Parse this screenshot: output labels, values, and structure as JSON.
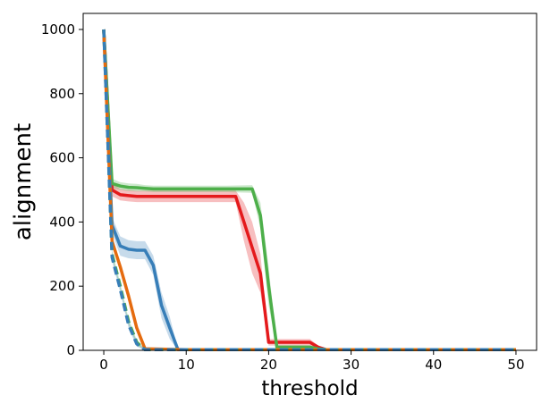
{
  "chart_data": {
    "type": "line",
    "title": "",
    "xlabel": "threshold",
    "ylabel": "alignment",
    "xlim": [
      -2.5,
      52.5
    ],
    "ylim": [
      0,
      1050
    ],
    "xticks": [
      0,
      10,
      20,
      30,
      40,
      50
    ],
    "yticks": [
      0,
      200,
      400,
      600,
      800,
      1000
    ],
    "grid": false,
    "legend": "none",
    "series": [
      {
        "color": "#e41a1c",
        "style": "solid",
        "x": [
          0,
          1,
          2,
          3,
          4,
          5,
          6,
          7,
          8,
          9,
          10,
          12,
          14,
          16,
          17,
          18,
          19,
          20,
          21,
          22,
          23,
          24,
          25,
          26,
          27,
          30,
          40,
          50
        ],
        "y": [
          1000,
          500,
          485,
          482,
          480,
          480,
          480,
          480,
          480,
          480,
          480,
          480,
          480,
          480,
          400,
          320,
          240,
          25,
          25,
          25,
          25,
          25,
          25,
          10,
          2,
          2,
          2,
          2
        ],
        "band": [
          0,
          20,
          18,
          18,
          18,
          18,
          18,
          18,
          18,
          18,
          18,
          18,
          18,
          18,
          60,
          80,
          60,
          10,
          10,
          10,
          10,
          10,
          10,
          5,
          2,
          2,
          2,
          2
        ]
      },
      {
        "color": "#4daf4a",
        "style": "solid",
        "x": [
          0,
          1,
          2,
          3,
          4,
          5,
          6,
          10,
          15,
          18,
          19,
          20,
          21,
          22,
          25,
          26,
          27,
          30,
          40,
          50
        ],
        "y": [
          1000,
          520,
          512,
          508,
          507,
          505,
          503,
          503,
          503,
          503,
          420,
          200,
          10,
          10,
          10,
          5,
          2,
          2,
          2,
          2
        ],
        "band": [
          0,
          15,
          12,
          12,
          12,
          10,
          10,
          10,
          10,
          12,
          40,
          60,
          5,
          5,
          5,
          3,
          2,
          2,
          2,
          2
        ]
      },
      {
        "color": "#377eb8",
        "style": "solid",
        "x": [
          0,
          1,
          2,
          3,
          4,
          5,
          6,
          7,
          8,
          9,
          10,
          20,
          30,
          40,
          50
        ],
        "y": [
          1000,
          390,
          325,
          315,
          312,
          312,
          265,
          140,
          70,
          2,
          2,
          2,
          2,
          2,
          2
        ],
        "band": [
          0,
          25,
          30,
          28,
          28,
          28,
          30,
          40,
          35,
          2,
          2,
          2,
          2,
          2,
          2
        ]
      },
      {
        "color": "#e56b0f",
        "style": "solid",
        "x": [
          0,
          1,
          2,
          3,
          4,
          5,
          10,
          20,
          30,
          40,
          50
        ],
        "y": [
          1000,
          340,
          260,
          170,
          70,
          5,
          2,
          2,
          2,
          2,
          2
        ],
        "band": [
          0,
          15,
          12,
          12,
          10,
          3,
          2,
          2,
          2,
          2,
          2
        ]
      },
      {
        "color": "#4daf4a",
        "style": "dashed",
        "x": [
          0,
          1,
          2,
          3,
          4,
          5,
          10,
          20,
          30,
          40,
          50
        ],
        "y": [
          1000,
          300,
          200,
          90,
          25,
          2,
          2,
          2,
          2,
          2,
          2
        ],
        "band": [
          0,
          12,
          10,
          10,
          8,
          2,
          2,
          2,
          2,
          2,
          2
        ]
      },
      {
        "color": "#377eb8",
        "style": "dashed",
        "x": [
          0,
          1,
          2,
          3,
          4,
          5,
          10,
          20,
          30,
          40,
          50
        ],
        "y": [
          1000,
          290,
          190,
          80,
          20,
          2,
          2,
          2,
          2,
          2,
          2
        ],
        "band": [
          0,
          12,
          10,
          10,
          8,
          2,
          2,
          2,
          2,
          2,
          2
        ]
      }
    ]
  }
}
